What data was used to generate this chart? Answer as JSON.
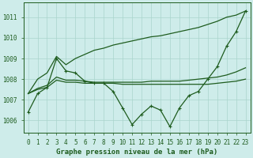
{
  "title": "Graphe pression niveau de la mer (hPa)",
  "bg_color": "#ceecea",
  "line_color": "#1e5c1e",
  "grid_color": "#aad4cc",
  "x_values": [
    0,
    1,
    2,
    3,
    4,
    5,
    6,
    7,
    8,
    9,
    10,
    11,
    12,
    13,
    14,
    15,
    16,
    17,
    18,
    19,
    20,
    21,
    22,
    23
  ],
  "series_main": [
    1006.4,
    1007.3,
    1007.6,
    1009.0,
    1008.4,
    1008.3,
    1007.9,
    1007.8,
    1007.8,
    1007.4,
    1006.6,
    1005.8,
    1006.3,
    1006.7,
    1006.5,
    1005.7,
    1006.6,
    1007.2,
    1007.4,
    1008.0,
    1008.6,
    1009.6,
    1010.3,
    1011.3
  ],
  "series_upper": [
    1007.3,
    1008.0,
    1008.3,
    1009.1,
    1008.7,
    1009.0,
    1009.2,
    1009.4,
    1009.5,
    1009.65,
    1009.75,
    1009.85,
    1009.95,
    1010.05,
    1010.1,
    1010.2,
    1010.3,
    1010.4,
    1010.5,
    1010.65,
    1010.8,
    1011.0,
    1011.1,
    1011.3
  ],
  "series_mid": [
    1007.3,
    1007.55,
    1007.7,
    1008.1,
    1007.95,
    1007.95,
    1007.9,
    1007.85,
    1007.85,
    1007.85,
    1007.85,
    1007.85,
    1007.85,
    1007.9,
    1007.9,
    1007.9,
    1007.9,
    1007.95,
    1008.0,
    1008.05,
    1008.1,
    1008.2,
    1008.35,
    1008.55
  ],
  "series_lower": [
    1007.3,
    1007.5,
    1007.6,
    1007.95,
    1007.85,
    1007.85,
    1007.8,
    1007.8,
    1007.8,
    1007.8,
    1007.75,
    1007.75,
    1007.75,
    1007.75,
    1007.75,
    1007.75,
    1007.75,
    1007.75,
    1007.75,
    1007.75,
    1007.8,
    1007.85,
    1007.9,
    1008.0
  ],
  "ylim_min": 1005.4,
  "ylim_max": 1011.7,
  "yticks": [
    1006,
    1007,
    1008,
    1009,
    1010,
    1011
  ],
  "tick_fontsize": 5.5,
  "title_fontsize": 6.5
}
